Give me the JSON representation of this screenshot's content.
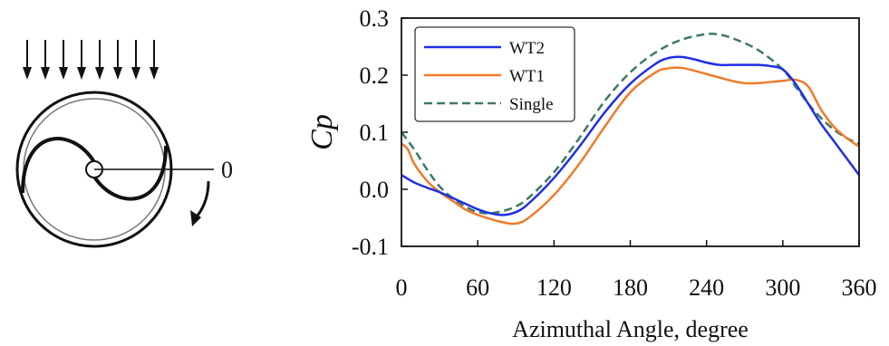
{
  "schematic": {
    "zero_label": "0",
    "arrow_count": 8
  },
  "chart_data": {
    "type": "line",
    "title": "",
    "xlabel": "Azimuthal Angle, degree",
    "ylabel": "Cp",
    "xlim": [
      0,
      360
    ],
    "ylim": [
      -0.1,
      0.3
    ],
    "xticks": [
      0,
      60,
      120,
      180,
      240,
      300,
      360
    ],
    "xtick_labels": [
      "0",
      "60",
      "120",
      "180",
      "240",
      "300",
      "360"
    ],
    "yticks": [
      -0.1,
      0.0,
      0.1,
      0.2,
      0.3
    ],
    "ytick_labels": [
      "-0.1",
      "0.0",
      "0.1",
      "0.2",
      "0.3"
    ],
    "grid": false,
    "legend_position": "top-left",
    "series": [
      {
        "name": "WT2",
        "color": "#1f2fe6",
        "dash": "solid",
        "points": [
          [
            0,
            0.025
          ],
          [
            10,
            0.012
          ],
          [
            20,
            0.003
          ],
          [
            30,
            -0.005
          ],
          [
            40,
            -0.015
          ],
          [
            50,
            -0.025
          ],
          [
            60,
            -0.035
          ],
          [
            70,
            -0.042
          ],
          [
            80,
            -0.045
          ],
          [
            90,
            -0.04
          ],
          [
            100,
            -0.025
          ],
          [
            120,
            0.02
          ],
          [
            140,
            0.075
          ],
          [
            160,
            0.135
          ],
          [
            180,
            0.185
          ],
          [
            200,
            0.22
          ],
          [
            210,
            0.23
          ],
          [
            220,
            0.232
          ],
          [
            230,
            0.228
          ],
          [
            240,
            0.222
          ],
          [
            250,
            0.218
          ],
          [
            260,
            0.218
          ],
          [
            270,
            0.218
          ],
          [
            280,
            0.218
          ],
          [
            290,
            0.216
          ],
          [
            300,
            0.21
          ],
          [
            310,
            0.185
          ],
          [
            320,
            0.15
          ],
          [
            330,
            0.115
          ],
          [
            340,
            0.085
          ],
          [
            350,
            0.055
          ],
          [
            360,
            0.025
          ]
        ]
      },
      {
        "name": "WT1",
        "color": "#f07a2a",
        "dash": "solid",
        "points": [
          [
            0,
            0.08
          ],
          [
            5,
            0.07
          ],
          [
            10,
            0.045
          ],
          [
            20,
            0.015
          ],
          [
            30,
            -0.005
          ],
          [
            40,
            -0.02
          ],
          [
            50,
            -0.035
          ],
          [
            60,
            -0.045
          ],
          [
            70,
            -0.052
          ],
          [
            80,
            -0.058
          ],
          [
            90,
            -0.06
          ],
          [
            100,
            -0.05
          ],
          [
            120,
            -0.01
          ],
          [
            140,
            0.045
          ],
          [
            160,
            0.11
          ],
          [
            180,
            0.17
          ],
          [
            200,
            0.205
          ],
          [
            210,
            0.212
          ],
          [
            220,
            0.213
          ],
          [
            230,
            0.208
          ],
          [
            240,
            0.202
          ],
          [
            250,
            0.196
          ],
          [
            260,
            0.19
          ],
          [
            270,
            0.186
          ],
          [
            280,
            0.186
          ],
          [
            290,
            0.188
          ],
          [
            300,
            0.19
          ],
          [
            310,
            0.192
          ],
          [
            320,
            0.18
          ],
          [
            330,
            0.14
          ],
          [
            340,
            0.11
          ],
          [
            350,
            0.09
          ],
          [
            360,
            0.075
          ]
        ]
      },
      {
        "name": "Single",
        "color": "#3d7a64",
        "dash": "dashed",
        "points": [
          [
            0,
            0.1
          ],
          [
            10,
            0.07
          ],
          [
            20,
            0.035
          ],
          [
            30,
            0.005
          ],
          [
            40,
            -0.015
          ],
          [
            50,
            -0.03
          ],
          [
            60,
            -0.04
          ],
          [
            70,
            -0.042
          ],
          [
            80,
            -0.038
          ],
          [
            90,
            -0.03
          ],
          [
            100,
            -0.015
          ],
          [
            120,
            0.03
          ],
          [
            140,
            0.09
          ],
          [
            160,
            0.155
          ],
          [
            180,
            0.205
          ],
          [
            200,
            0.24
          ],
          [
            220,
            0.262
          ],
          [
            240,
            0.272
          ],
          [
            250,
            0.271
          ],
          [
            260,
            0.265
          ],
          [
            280,
            0.245
          ],
          [
            300,
            0.21
          ],
          [
            310,
            0.18
          ],
          [
            320,
            0.15
          ],
          [
            330,
            0.125
          ],
          [
            340,
            0.105
          ],
          [
            350,
            0.09
          ],
          [
            360,
            0.08
          ]
        ]
      }
    ]
  }
}
